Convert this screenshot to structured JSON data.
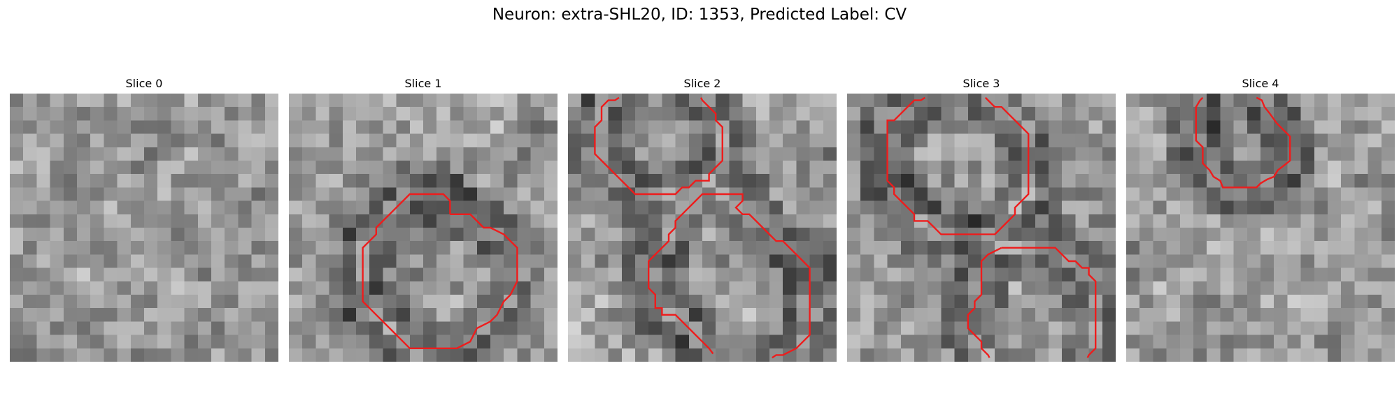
{
  "figure": {
    "title": "Neuron: extra-SHL20, ID: 1353, Predicted Label: CV"
  },
  "colors": {
    "contour": "#ee1c1c",
    "background": "#ffffff"
  },
  "panels": [
    {
      "title": "Slice 0",
      "seed": 11,
      "contours": []
    },
    {
      "title": "Slice 1",
      "seed": 23,
      "contours": [
        [
          [
            12.0,
            9.0
          ],
          [
            13.5,
            9.0
          ],
          [
            14.0,
            9.5
          ],
          [
            14.5,
            10.0
          ],
          [
            15.0,
            10.0
          ],
          [
            16.0,
            10.5
          ],
          [
            17.0,
            11.5
          ],
          [
            17.0,
            14.0
          ],
          [
            16.5,
            15.0
          ],
          [
            16.0,
            15.5
          ],
          [
            15.5,
            16.5
          ],
          [
            15.0,
            17.0
          ],
          [
            14.0,
            17.5
          ],
          [
            13.5,
            18.5
          ],
          [
            12.5,
            19.0
          ],
          [
            10.5,
            19.0
          ],
          [
            9.0,
            19.0
          ],
          [
            8.5,
            18.5
          ],
          [
            8.0,
            18.0
          ],
          [
            7.5,
            17.5
          ],
          [
            7.0,
            17.0
          ],
          [
            6.5,
            16.5
          ],
          [
            6.0,
            16.0
          ],
          [
            5.5,
            15.5
          ],
          [
            5.5,
            14.5
          ],
          [
            5.5,
            11.5
          ],
          [
            6.0,
            11.0
          ],
          [
            6.5,
            10.5
          ],
          [
            6.5,
            10.0
          ],
          [
            7.0,
            9.5
          ],
          [
            7.5,
            9.0
          ],
          [
            8.0,
            8.5
          ],
          [
            8.5,
            8.0
          ],
          [
            9.0,
            7.5
          ],
          [
            10.5,
            7.5
          ],
          [
            11.5,
            7.5
          ],
          [
            12.0,
            8.0
          ],
          [
            12.0,
            9.0
          ]
        ]
      ]
    },
    {
      "title": "Slice 2",
      "seed": 37,
      "contours": [
        [
          [
            3.8,
            0.3
          ],
          [
            3.5,
            0.5
          ],
          [
            3.0,
            0.5
          ],
          [
            2.5,
            1.0
          ],
          [
            2.5,
            2.0
          ],
          [
            2.0,
            2.5
          ],
          [
            2.0,
            4.0
          ],
          [
            2.0,
            4.5
          ],
          [
            2.5,
            5.0
          ],
          [
            3.0,
            5.5
          ],
          [
            3.5,
            6.0
          ],
          [
            4.0,
            6.5
          ],
          [
            4.5,
            7.0
          ],
          [
            5.0,
            7.5
          ],
          [
            6.0,
            7.5
          ],
          [
            7.5,
            7.5
          ],
          [
            8.0,
            7.5
          ],
          [
            8.5,
            7.0
          ],
          [
            9.0,
            7.0
          ],
          [
            9.5,
            6.5
          ],
          [
            10.5,
            6.5
          ],
          [
            10.5,
            6.0
          ],
          [
            11.0,
            5.5
          ],
          [
            11.5,
            5.0
          ],
          [
            11.5,
            3.0
          ],
          [
            11.5,
            2.5
          ],
          [
            11.0,
            2.0
          ],
          [
            11.0,
            1.5
          ],
          [
            10.5,
            1.0
          ],
          [
            10.0,
            0.5
          ],
          [
            9.9,
            0.3
          ]
        ],
        [
          [
            10.5,
            7.5
          ],
          [
            13.0,
            7.5
          ],
          [
            13.0,
            8.0
          ],
          [
            12.5,
            8.5
          ],
          [
            13.0,
            9.0
          ],
          [
            13.5,
            9.0
          ],
          [
            14.0,
            9.5
          ],
          [
            14.5,
            10.0
          ],
          [
            15.0,
            10.5
          ],
          [
            15.5,
            11.0
          ],
          [
            16.0,
            11.0
          ],
          [
            16.5,
            11.5
          ],
          [
            17.0,
            12.0
          ],
          [
            18.0,
            13.0
          ],
          [
            18.0,
            18.0
          ],
          [
            17.5,
            18.5
          ],
          [
            17.0,
            19.0
          ],
          [
            16.0,
            19.5
          ],
          [
            15.5,
            19.5
          ],
          [
            15.2,
            19.7
          ]
        ],
        [
          [
            10.5,
            7.5
          ],
          [
            10.0,
            7.5
          ],
          [
            9.5,
            8.0
          ],
          [
            9.0,
            8.5
          ],
          [
            8.5,
            9.0
          ],
          [
            8.0,
            9.5
          ],
          [
            8.0,
            10.0
          ],
          [
            7.5,
            10.5
          ],
          [
            7.5,
            11.0
          ],
          [
            6.5,
            12.0
          ],
          [
            6.0,
            12.5
          ],
          [
            6.0,
            14.5
          ],
          [
            6.5,
            15.0
          ],
          [
            6.5,
            16.0
          ],
          [
            7.0,
            16.0
          ],
          [
            7.0,
            16.5
          ],
          [
            8.0,
            16.5
          ],
          [
            8.5,
            17.0
          ],
          [
            9.0,
            17.5
          ],
          [
            9.5,
            18.0
          ],
          [
            10.0,
            18.5
          ],
          [
            10.5,
            19.0
          ],
          [
            10.8,
            19.4
          ]
        ]
      ]
    },
    {
      "title": "Slice 3",
      "seed": 53,
      "contours": [
        [
          [
            5.8,
            0.3
          ],
          [
            5.5,
            0.5
          ],
          [
            5.0,
            0.5
          ],
          [
            4.5,
            1.0
          ],
          [
            4.0,
            1.5
          ],
          [
            3.5,
            2.0
          ],
          [
            3.0,
            2.0
          ],
          [
            3.0,
            6.5
          ],
          [
            3.5,
            7.0
          ],
          [
            3.5,
            7.5
          ],
          [
            4.0,
            8.0
          ],
          [
            4.5,
            8.5
          ],
          [
            5.0,
            9.0
          ],
          [
            5.0,
            9.5
          ],
          [
            6.0,
            9.5
          ],
          [
            6.5,
            10.0
          ],
          [
            7.0,
            10.5
          ],
          [
            11.0,
            10.5
          ],
          [
            11.5,
            10.0
          ],
          [
            12.0,
            9.5
          ],
          [
            12.5,
            9.0
          ],
          [
            12.5,
            8.5
          ],
          [
            13.0,
            8.0
          ],
          [
            13.5,
            7.5
          ],
          [
            13.5,
            3.0
          ],
          [
            13.0,
            2.5
          ],
          [
            12.5,
            2.0
          ],
          [
            12.0,
            1.5
          ],
          [
            11.5,
            1.0
          ],
          [
            11.0,
            1.0
          ],
          [
            10.5,
            0.5
          ],
          [
            10.3,
            0.3
          ]
        ],
        [
          [
            11.5,
            11.5
          ],
          [
            15.5,
            11.5
          ],
          [
            16.0,
            12.0
          ],
          [
            16.5,
            12.5
          ],
          [
            17.0,
            12.5
          ],
          [
            17.5,
            13.0
          ],
          [
            18.0,
            13.0
          ],
          [
            18.0,
            13.5
          ],
          [
            18.5,
            14.0
          ],
          [
            18.5,
            19.0
          ],
          [
            18.0,
            19.5
          ],
          [
            17.9,
            19.7
          ]
        ],
        [
          [
            11.5,
            11.5
          ],
          [
            10.5,
            12.0
          ],
          [
            10.0,
            12.5
          ],
          [
            10.0,
            15.0
          ],
          [
            9.5,
            15.5
          ],
          [
            9.5,
            16.0
          ],
          [
            9.0,
            16.5
          ],
          [
            9.0,
            17.5
          ],
          [
            9.5,
            18.0
          ],
          [
            10.0,
            18.5
          ],
          [
            10.0,
            19.0
          ],
          [
            10.5,
            19.5
          ],
          [
            10.6,
            19.7
          ]
        ]
      ]
    },
    {
      "title": "Slice 4",
      "seed": 71,
      "contours": [
        [
          [
            5.7,
            0.3
          ],
          [
            5.5,
            0.5
          ],
          [
            5.2,
            1.0
          ],
          [
            5.2,
            3.5
          ],
          [
            5.7,
            4.0
          ],
          [
            5.7,
            5.2
          ],
          [
            6.2,
            5.7
          ],
          [
            6.5,
            6.2
          ],
          [
            7.0,
            6.5
          ],
          [
            7.2,
            7.0
          ],
          [
            9.7,
            7.0
          ],
          [
            10.0,
            6.7
          ],
          [
            10.5,
            6.4
          ],
          [
            11.0,
            6.2
          ],
          [
            11.3,
            5.7
          ],
          [
            11.7,
            5.4
          ],
          [
            12.2,
            5.0
          ],
          [
            12.2,
            3.2
          ],
          [
            11.7,
            2.7
          ],
          [
            11.2,
            2.2
          ],
          [
            10.7,
            1.5
          ],
          [
            10.3,
            1.0
          ],
          [
            10.1,
            0.5
          ],
          [
            9.7,
            0.3
          ]
        ]
      ]
    }
  ]
}
